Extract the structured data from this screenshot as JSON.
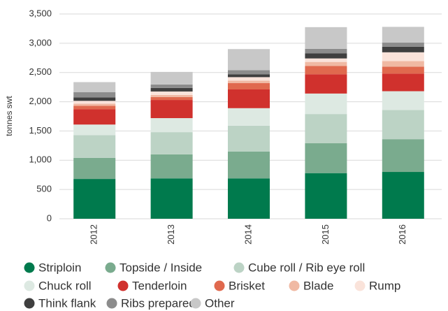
{
  "chart_data": {
    "type": "stacked_bar",
    "y_label": "tonnes swt",
    "categories": [
      "2012",
      "2013",
      "2014",
      "2015",
      "2016"
    ],
    "series": [
      {
        "name": "Striploin",
        "color": "#007a4d",
        "values": [
          680,
          690,
          690,
          780,
          800
        ]
      },
      {
        "name": "Topside / Inside",
        "color": "#7aab8e",
        "values": [
          360,
          410,
          460,
          510,
          560
        ]
      },
      {
        "name": "Cube roll / Rib eye roll",
        "color": "#bcd3c5",
        "values": [
          390,
          380,
          440,
          500,
          500
        ]
      },
      {
        "name": "Chuck roll",
        "color": "#dde9e2",
        "values": [
          180,
          240,
          300,
          350,
          320
        ]
      },
      {
        "name": "Tenderloin",
        "color": "#d0312d",
        "values": [
          260,
          310,
          320,
          330,
          300
        ]
      },
      {
        "name": "Brisket",
        "color": "#e0694e",
        "values": [
          60,
          50,
          110,
          140,
          120
        ]
      },
      {
        "name": "Blade",
        "color": "#f0b9a3",
        "values": [
          35,
          35,
          40,
          70,
          95
        ]
      },
      {
        "name": "Rump",
        "color": "#fae3da",
        "values": [
          50,
          60,
          60,
          60,
          150
        ]
      },
      {
        "name": "Think flank",
        "color": "#3f3f3f",
        "values": [
          60,
          60,
          50,
          85,
          95
        ]
      },
      {
        "name": "Ribs prepared",
        "color": "#8c8c8c",
        "values": [
          90,
          60,
          70,
          80,
          70
        ]
      },
      {
        "name": "Other",
        "color": "#c8c8c8",
        "values": [
          170,
          215,
          360,
          370,
          270
        ]
      }
    ],
    "ylim": [
      0,
      3500
    ],
    "yticks": [
      0,
      500,
      {
        "value": 1000,
        "label": "1,000"
      },
      {
        "value": 1500,
        "label": "1,500"
      },
      {
        "value": 2000,
        "label": "2,000"
      },
      {
        "value": 2500,
        "label": "2,500"
      },
      {
        "value": 3000,
        "label": "3,000"
      },
      {
        "value": 3500,
        "label": "3,500"
      }
    ],
    "grid": true,
    "legend": "bottom"
  }
}
